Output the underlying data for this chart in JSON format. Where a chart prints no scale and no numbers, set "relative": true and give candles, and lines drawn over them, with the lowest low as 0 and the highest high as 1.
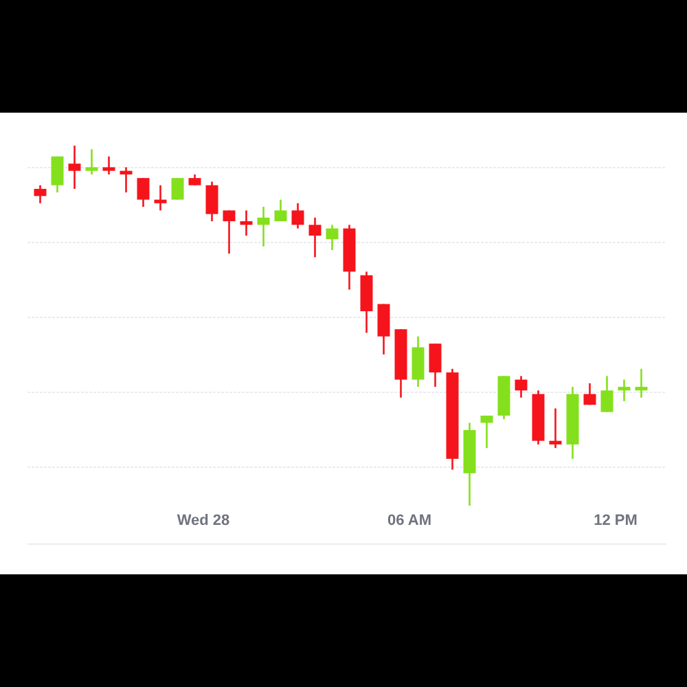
{
  "chart_data": {
    "type": "candlestick",
    "relative": true,
    "grid": "y",
    "x": [
      -4.75,
      -4.25,
      -3.75,
      -3.25,
      -2.75,
      -2.25,
      -1.75,
      -1.25,
      -0.75,
      -0.25,
      0.25,
      0.75,
      1.25,
      1.75,
      2.25,
      2.75,
      3.25,
      3.75,
      4.25,
      4.75,
      5.25,
      5.75,
      6.25,
      6.75,
      7.25,
      7.75,
      8.25,
      8.75,
      9.25,
      9.75,
      10.25,
      10.75,
      11.25,
      11.75,
      12.25,
      12.75
    ],
    "xlim": [
      -5.12,
      13.48
    ],
    "xticks": [
      {
        "value": 0,
        "label": "Wed 28"
      },
      {
        "value": 6,
        "label": "06 AM"
      },
      {
        "value": 12,
        "label": "12 PM"
      }
    ],
    "ohlc": [
      [
        0.88,
        0.89,
        0.84,
        0.86
      ],
      [
        0.89,
        0.97,
        0.87,
        0.97
      ],
      [
        0.95,
        1.0,
        0.88,
        0.93
      ],
      [
        0.93,
        0.99,
        0.92,
        0.94
      ],
      [
        0.94,
        0.97,
        0.92,
        0.93
      ],
      [
        0.93,
        0.94,
        0.87,
        0.92
      ],
      [
        0.91,
        0.91,
        0.83,
        0.85
      ],
      [
        0.85,
        0.89,
        0.82,
        0.84
      ],
      [
        0.85,
        0.91,
        0.85,
        0.91
      ],
      [
        0.91,
        0.92,
        0.89,
        0.89
      ],
      [
        0.89,
        0.9,
        0.79,
        0.81
      ],
      [
        0.82,
        0.82,
        0.7,
        0.79
      ],
      [
        0.79,
        0.82,
        0.75,
        0.78
      ],
      [
        0.78,
        0.83,
        0.72,
        0.8
      ],
      [
        0.79,
        0.85,
        0.79,
        0.82
      ],
      [
        0.82,
        0.84,
        0.77,
        0.78
      ],
      [
        0.78,
        0.8,
        0.69,
        0.75
      ],
      [
        0.74,
        0.78,
        0.71,
        0.77
      ],
      [
        0.77,
        0.78,
        0.6,
        0.65
      ],
      [
        0.64,
        0.65,
        0.48,
        0.54
      ],
      [
        0.56,
        0.56,
        0.42,
        0.47
      ],
      [
        0.49,
        0.49,
        0.3,
        0.35
      ],
      [
        0.35,
        0.47,
        0.33,
        0.44
      ],
      [
        0.45,
        0.45,
        0.33,
        0.37
      ],
      [
        0.37,
        0.38,
        0.1,
        0.13
      ],
      [
        0.09,
        0.23,
        0.0,
        0.21
      ],
      [
        0.23,
        0.25,
        0.16,
        0.25
      ],
      [
        0.25,
        0.36,
        0.24,
        0.36
      ],
      [
        0.35,
        0.36,
        0.3,
        0.32
      ],
      [
        0.31,
        0.32,
        0.17,
        0.18
      ],
      [
        0.18,
        0.27,
        0.16,
        0.17
      ],
      [
        0.17,
        0.33,
        0.13,
        0.31
      ],
      [
        0.31,
        0.34,
        0.28,
        0.28
      ],
      [
        0.26,
        0.36,
        0.26,
        0.32
      ],
      [
        0.32,
        0.35,
        0.29,
        0.33
      ],
      [
        0.32,
        0.38,
        0.3,
        0.33
      ]
    ],
    "colors": [
      "#f5141b",
      "#84e01c",
      "#f5141b",
      "#84e01c",
      "#f5141b",
      "#f5141b",
      "#f5141b",
      "#f5141b",
      "#84e01c",
      "#f5141b",
      "#f5141b",
      "#f5141b",
      "#f5141b",
      "#84e01c",
      "#84e01c",
      "#f5141b",
      "#f5141b",
      "#84e01c",
      "#f5141b",
      "#f5141b",
      "#f5141b",
      "#f5141b",
      "#84e01c",
      "#f5141b",
      "#f5141b",
      "#84e01c",
      "#84e01c",
      "#84e01c",
      "#f5141b",
      "#f5141b",
      "#f5141b",
      "#84e01c",
      "#f5141b",
      "#84e01c",
      "#84e01c",
      "#84e01c"
    ]
  }
}
